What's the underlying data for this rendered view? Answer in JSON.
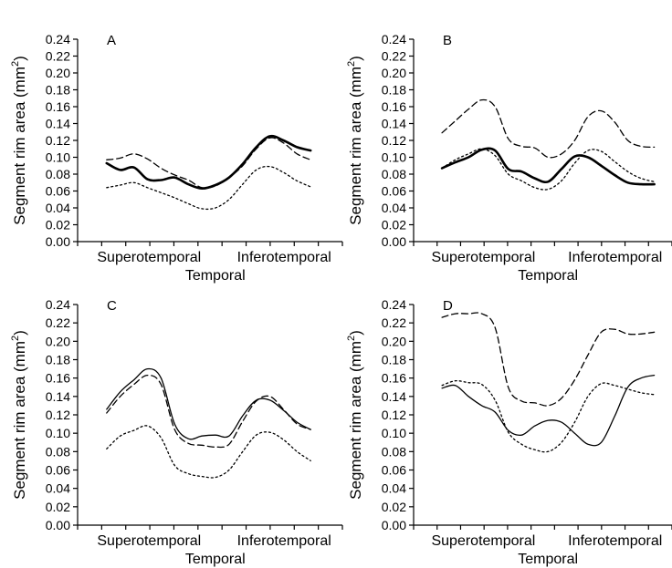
{
  "chart_data": [
    {
      "type": "line",
      "panel": "A",
      "ylabel": "Segment rim area (mm",
      "ylabel_sup": "2",
      "ylabel_close": ")",
      "xlabel": "Temporal",
      "categories": [
        "Superotemporal",
        "Inferotemporal"
      ],
      "ylim": [
        0,
        0.24
      ],
      "yticks": [
        "0.00",
        "0.02",
        "0.04",
        "0.06",
        "0.08",
        "0.10",
        "0.12",
        "0.14",
        "0.16",
        "0.18",
        "0.20",
        "0.22",
        "0.24"
      ],
      "series": [
        {
          "style": "solid-thick",
          "x": [
            0,
            0.6,
            1.2,
            1.8,
            2.4,
            3.0,
            3.6,
            4.2,
            4.8,
            5.4,
            6.0,
            6.6,
            7.2,
            7.8,
            8.4,
            9.0
          ],
          "values": [
            0.093,
            0.085,
            0.088,
            0.074,
            0.073,
            0.076,
            0.068,
            0.063,
            0.067,
            0.076,
            0.092,
            0.112,
            0.125,
            0.12,
            0.112,
            0.108
          ]
        },
        {
          "style": "dashed",
          "x": [
            0,
            0.6,
            1.2,
            1.8,
            2.4,
            3.0,
            3.6,
            4.2,
            4.8,
            5.4,
            6.0,
            6.6,
            7.2,
            7.8,
            8.4,
            9.0
          ],
          "values": [
            0.097,
            0.099,
            0.104,
            0.098,
            0.087,
            0.079,
            0.073,
            0.064,
            0.066,
            0.076,
            0.09,
            0.11,
            0.123,
            0.117,
            0.104,
            0.097
          ]
        },
        {
          "style": "dotted",
          "x": [
            0,
            0.6,
            1.2,
            1.8,
            2.4,
            3.0,
            3.6,
            4.2,
            4.8,
            5.4,
            6.0,
            6.6,
            7.2,
            7.8,
            8.4,
            9.0
          ],
          "values": [
            0.064,
            0.067,
            0.07,
            0.064,
            0.058,
            0.052,
            0.045,
            0.039,
            0.04,
            0.05,
            0.068,
            0.085,
            0.089,
            0.082,
            0.072,
            0.065
          ]
        }
      ]
    },
    {
      "type": "line",
      "panel": "B",
      "ylabel": "Segment rim area (mm",
      "ylabel_sup": "2",
      "ylabel_close": ")",
      "xlabel": "Temporal",
      "categories": [
        "Superotemporal",
        "Inferotemporal"
      ],
      "ylim": [
        0,
        0.24
      ],
      "yticks": [
        "0.00",
        "0.02",
        "0.04",
        "0.06",
        "0.08",
        "0.10",
        "0.12",
        "0.14",
        "0.16",
        "0.18",
        "0.20",
        "0.22",
        "0.24"
      ],
      "series": [
        {
          "style": "solid-thick",
          "x": [
            0,
            0.6,
            1.2,
            1.8,
            2.4,
            3.0,
            3.6,
            4.2,
            4.8,
            5.4,
            6.0,
            6.6,
            7.2,
            7.8,
            8.4,
            9.0,
            9.6
          ],
          "values": [
            0.087,
            0.094,
            0.1,
            0.109,
            0.108,
            0.086,
            0.083,
            0.075,
            0.071,
            0.086,
            0.101,
            0.1,
            0.09,
            0.079,
            0.07,
            0.068,
            0.068
          ]
        },
        {
          "style": "dashed",
          "x": [
            0,
            0.6,
            1.2,
            1.8,
            2.4,
            3.0,
            3.6,
            4.2,
            4.8,
            5.4,
            6.0,
            6.6,
            7.2,
            7.8,
            8.4,
            9.0,
            9.6
          ],
          "values": [
            0.129,
            0.143,
            0.157,
            0.168,
            0.16,
            0.122,
            0.113,
            0.111,
            0.1,
            0.104,
            0.12,
            0.148,
            0.155,
            0.142,
            0.12,
            0.113,
            0.112
          ]
        },
        {
          "style": "dotted",
          "x": [
            0,
            0.6,
            1.2,
            1.8,
            2.4,
            3.0,
            3.6,
            4.2,
            4.8,
            5.4,
            6.0,
            6.6,
            7.2,
            7.8,
            8.4,
            9.0,
            9.6
          ],
          "values": [
            0.087,
            0.097,
            0.104,
            0.11,
            0.102,
            0.08,
            0.072,
            0.064,
            0.062,
            0.072,
            0.093,
            0.108,
            0.107,
            0.095,
            0.083,
            0.075,
            0.071
          ]
        }
      ]
    },
    {
      "type": "line",
      "panel": "C",
      "ylabel": "Segment rim area (mm",
      "ylabel_sup": "2",
      "ylabel_close": ")",
      "xlabel": "Temporal",
      "categories": [
        "Superotemporal",
        "Inferotemporal"
      ],
      "ylim": [
        0,
        0.24
      ],
      "yticks": [
        "0.00",
        "0.02",
        "0.04",
        "0.06",
        "0.08",
        "0.10",
        "0.12",
        "0.14",
        "0.16",
        "0.18",
        "0.20",
        "0.22",
        "0.24"
      ],
      "series": [
        {
          "style": "solid",
          "x": [
            0,
            0.6,
            1.2,
            1.8,
            2.4,
            3.0,
            3.6,
            4.2,
            4.8,
            5.4,
            6.0,
            6.6,
            7.2,
            7.8,
            8.4,
            9.0
          ],
          "values": [
            0.126,
            0.145,
            0.158,
            0.17,
            0.16,
            0.11,
            0.094,
            0.097,
            0.098,
            0.097,
            0.119,
            0.136,
            0.136,
            0.125,
            0.112,
            0.104
          ]
        },
        {
          "style": "dashed",
          "x": [
            0,
            0.6,
            1.2,
            1.8,
            2.4,
            3.0,
            3.6,
            4.2,
            4.8,
            5.4,
            6.0,
            6.6,
            7.2,
            7.8,
            8.4,
            9.0
          ],
          "values": [
            0.122,
            0.14,
            0.153,
            0.163,
            0.153,
            0.104,
            0.089,
            0.087,
            0.085,
            0.088,
            0.113,
            0.135,
            0.14,
            0.126,
            0.11,
            0.104
          ]
        },
        {
          "style": "dotted",
          "x": [
            0,
            0.6,
            1.2,
            1.8,
            2.4,
            3.0,
            3.6,
            4.2,
            4.8,
            5.4,
            6.0,
            6.6,
            7.2,
            7.8,
            8.4,
            9.0
          ],
          "values": [
            0.083,
            0.097,
            0.103,
            0.108,
            0.095,
            0.065,
            0.056,
            0.053,
            0.052,
            0.06,
            0.08,
            0.098,
            0.101,
            0.093,
            0.08,
            0.07
          ]
        }
      ]
    },
    {
      "type": "line",
      "panel": "D",
      "ylabel": "Segment rim area (mm",
      "ylabel_sup": "2",
      "ylabel_close": ")",
      "xlabel": "Temporal",
      "categories": [
        "Superotemporal",
        "Inferotemporal"
      ],
      "ylim": [
        0,
        0.24
      ],
      "yticks": [
        "0.00",
        "0.02",
        "0.04",
        "0.06",
        "0.08",
        "0.10",
        "0.12",
        "0.14",
        "0.16",
        "0.18",
        "0.20",
        "0.22",
        "0.24"
      ],
      "series": [
        {
          "style": "solid",
          "x": [
            0,
            0.6,
            1.2,
            1.8,
            2.4,
            3.0,
            3.6,
            4.2,
            4.8,
            5.4,
            6.0,
            6.6,
            7.2,
            7.8,
            8.4,
            9.0,
            9.6
          ],
          "values": [
            0.149,
            0.152,
            0.14,
            0.13,
            0.123,
            0.103,
            0.098,
            0.108,
            0.114,
            0.112,
            0.1,
            0.088,
            0.09,
            0.118,
            0.15,
            0.16,
            0.163
          ]
        },
        {
          "style": "dashed",
          "x": [
            0,
            0.6,
            1.2,
            1.8,
            2.4,
            3.0,
            3.6,
            4.2,
            4.8,
            5.4,
            6.0,
            6.6,
            7.2,
            7.8,
            8.4,
            9.0,
            9.6
          ],
          "values": [
            0.226,
            0.23,
            0.23,
            0.23,
            0.215,
            0.15,
            0.135,
            0.133,
            0.13,
            0.138,
            0.158,
            0.185,
            0.21,
            0.213,
            0.208,
            0.208,
            0.21
          ]
        },
        {
          "style": "dotted",
          "x": [
            0,
            0.6,
            1.2,
            1.8,
            2.4,
            3.0,
            3.6,
            4.2,
            4.8,
            5.4,
            6.0,
            6.6,
            7.2,
            7.8,
            8.4,
            9.0,
            9.6
          ],
          "values": [
            0.152,
            0.157,
            0.155,
            0.153,
            0.136,
            0.101,
            0.088,
            0.082,
            0.08,
            0.09,
            0.112,
            0.14,
            0.154,
            0.152,
            0.148,
            0.144,
            0.142
          ]
        }
      ]
    }
  ]
}
